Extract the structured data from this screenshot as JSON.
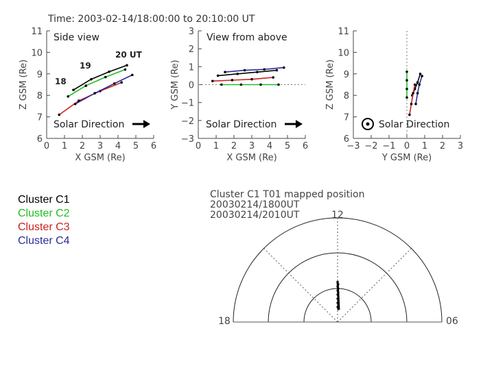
{
  "header": {
    "time_range": "Time: 2003-02-14/18:00:00  to  20:10:00  UT"
  },
  "legend": {
    "items": [
      {
        "label": "Cluster C1",
        "color": "#000000"
      },
      {
        "label": "Cluster C2",
        "color": "#1fbf1f"
      },
      {
        "label": "Cluster C3",
        "color": "#cc1f1f"
      },
      {
        "label": "Cluster C4",
        "color": "#2a2a9a"
      }
    ]
  },
  "polar": {
    "title": "Cluster C1    T01  mapped position",
    "line1": "20030214/1800UT",
    "line2": "20030214/2010UT",
    "label_top": "12",
    "label_left": "18",
    "label_right": "06"
  },
  "chart_data": [
    {
      "type": "line",
      "title": "Side view",
      "xlabel": "X GSM (Re)",
      "ylabel": "Z GSM (Re)",
      "xlim": [
        0,
        6
      ],
      "ylim": [
        6,
        11
      ],
      "xticks": [
        "0",
        "1",
        "2",
        "3",
        "4",
        "5",
        "6"
      ],
      "yticks": [
        "6",
        "7",
        "8",
        "9",
        "10",
        "11"
      ],
      "annotations": [
        "19",
        "20 UT",
        "18"
      ],
      "direction_label": "Solar Direction",
      "series": [
        {
          "color": "#000000",
          "x": [
            1.5,
            2.5,
            3.5,
            4.5
          ],
          "y": [
            8.25,
            8.75,
            9.1,
            9.4
          ]
        },
        {
          "color": "#1fbf1f",
          "x": [
            1.2,
            2.2,
            3.3,
            4.4
          ],
          "y": [
            7.95,
            8.45,
            8.85,
            9.2
          ]
        },
        {
          "color": "#cc1f1f",
          "x": [
            0.7,
            1.8,
            3.0,
            4.2
          ],
          "y": [
            7.1,
            7.75,
            8.2,
            8.6
          ]
        },
        {
          "color": "#2a2a9a",
          "x": [
            1.6,
            2.7,
            3.8,
            4.8
          ],
          "y": [
            7.6,
            8.1,
            8.55,
            8.95
          ]
        }
      ]
    },
    {
      "type": "line",
      "title": "View from above",
      "xlabel": "X GSM (Re)",
      "ylabel": "Y GSM (Re)",
      "xlim": [
        0,
        6
      ],
      "ylim": [
        -3,
        3
      ],
      "xticks": [
        "0",
        "1",
        "2",
        "3",
        "4",
        "5",
        "6"
      ],
      "yticks": [
        "3",
        "2",
        "1",
        "0",
        "−1",
        "−2",
        "−3"
      ],
      "direction_label": "Solar Direction",
      "series": [
        {
          "color": "#000000",
          "x": [
            1.1,
            2.2,
            3.3,
            4.4
          ],
          "y": [
            0.5,
            0.6,
            0.7,
            0.8
          ]
        },
        {
          "color": "#1fbf1f",
          "x": [
            1.3,
            2.4,
            3.5,
            4.5
          ],
          "y": [
            0.0,
            0.0,
            0.0,
            0.0
          ]
        },
        {
          "color": "#cc1f1f",
          "x": [
            0.8,
            1.9,
            3.0,
            4.2
          ],
          "y": [
            0.2,
            0.25,
            0.3,
            0.4
          ]
        },
        {
          "color": "#2a2a9a",
          "x": [
            1.5,
            2.6,
            3.7,
            4.8
          ],
          "y": [
            0.7,
            0.8,
            0.85,
            0.95
          ]
        }
      ]
    },
    {
      "type": "line",
      "title": "",
      "xlabel": "Y GSM (Re)",
      "ylabel": "Z GSM (Re)",
      "xlim": [
        -3,
        3
      ],
      "ylim": [
        6,
        11
      ],
      "xticks": [
        "−3",
        "−2",
        "−1",
        "0",
        "1",
        "2",
        "3"
      ],
      "yticks": [
        "6",
        "7",
        "8",
        "9",
        "10",
        "11"
      ],
      "direction_label": "Solar Direction",
      "series": [
        {
          "color": "#000000",
          "x": [
            0.3,
            0.45,
            0.6,
            0.75
          ],
          "y": [
            8.0,
            8.3,
            8.6,
            9.0
          ]
        },
        {
          "color": "#1fbf1f",
          "x": [
            0.0,
            0.0,
            0.0,
            0.0
          ],
          "y": [
            7.9,
            8.3,
            8.7,
            9.1
          ]
        },
        {
          "color": "#cc1f1f",
          "x": [
            0.15,
            0.25,
            0.35,
            0.45
          ],
          "y": [
            7.1,
            7.6,
            8.1,
            8.5
          ]
        },
        {
          "color": "#2a2a9a",
          "x": [
            0.5,
            0.6,
            0.7,
            0.85
          ],
          "y": [
            7.6,
            8.1,
            8.5,
            8.9
          ]
        }
      ]
    }
  ]
}
